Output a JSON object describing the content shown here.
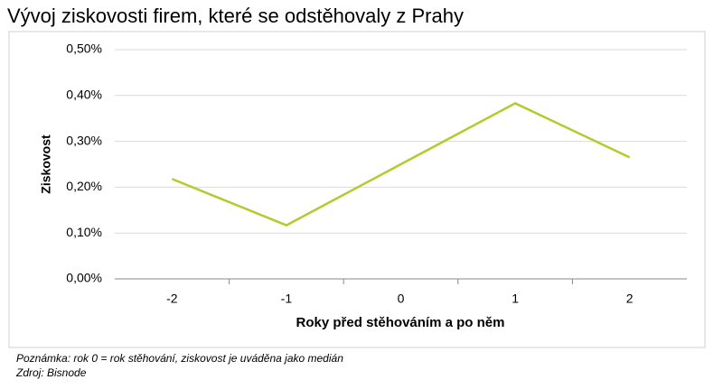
{
  "chart_data": {
    "type": "line",
    "title": "Vývoj ziskovosti firem, které se odstěhovaly z Prahy",
    "y_label": "Ziskovost",
    "x_label": "Roky před stěhováním a po něm",
    "categories": [
      "-2",
      "-1",
      "0",
      "1",
      "2"
    ],
    "series": [
      {
        "name": "Ziskovost",
        "color": "#b5ca2e",
        "values": [
          0.218,
          0.117,
          0.25,
          0.383,
          0.265
        ]
      }
    ],
    "ylim": [
      0,
      0.5
    ],
    "yticks": [
      {
        "value": 0,
        "label": "0,00%"
      },
      {
        "value": 0.1,
        "label": "0,10%"
      },
      {
        "value": 0.2,
        "label": "0,20%"
      },
      {
        "value": 0.3,
        "label": "0,30%"
      },
      {
        "value": 0.4,
        "label": "0,40%"
      },
      {
        "value": 0.5,
        "label": "0,50%"
      }
    ],
    "grid": true,
    "notes": [
      "Poznámka: rok 0 = rok stěhování, ziskovost je uváděna jako medián",
      "Zdroj: Bisnode"
    ]
  }
}
